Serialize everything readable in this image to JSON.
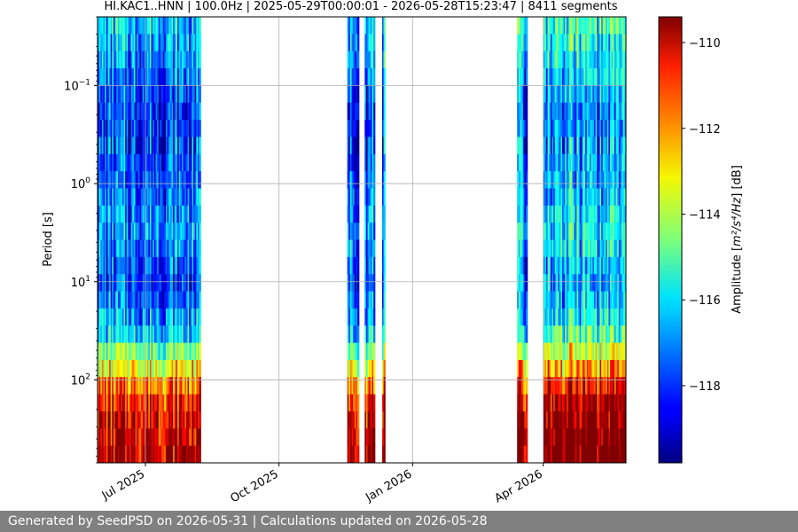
{
  "title": "HI.KAC1..HNN | 100.0Hz | 2025-05-29T00:00:01 - 2026-05-28T15:23:47 | 8411 segments",
  "footer": "Generated by SeedPSD on 2026-05-31 | Calculations updated on 2026-05-28",
  "chart_data": {
    "type": "heatmap",
    "title": "HI.KAC1..HNN | 100.0Hz | 2025-05-29T00:00:01 - 2026-05-28T15:23:47 | 8411 segments",
    "xlabel": "",
    "ylabel": "Period [s]",
    "y_scale": "log",
    "y_inverted": true,
    "xlim": [
      "2025-05-29",
      "2026-05-28"
    ],
    "ylim": [
      0.02,
      700
    ],
    "x_ticks": [
      {
        "date": "2025-07-01",
        "label": "Jul 2025"
      },
      {
        "date": "2025-10-01",
        "label": "Oct 2025"
      },
      {
        "date": "2026-01-01",
        "label": "Jan 2026"
      },
      {
        "date": "2026-04-01",
        "label": "Apr 2026"
      }
    ],
    "y_ticks": [
      {
        "value": 0.1,
        "base": "10",
        "exp": "−1"
      },
      {
        "value": 1,
        "base": "10",
        "exp": "0"
      },
      {
        "value": 10,
        "base": "10",
        "exp": "1"
      },
      {
        "value": 100,
        "base": "10",
        "exp": "2"
      }
    ],
    "grid": true,
    "colormap": "jet",
    "colorbar": {
      "label_prefix": "Amplitude [",
      "label_math": "m²/s⁴/Hz",
      "label_suffix": "] [dB]",
      "range": [
        -119.8,
        -109.4
      ],
      "ticks": [
        {
          "value": -110,
          "label": "−110"
        },
        {
          "value": -112,
          "label": "−112"
        },
        {
          "value": -114,
          "label": "−114"
        },
        {
          "value": -116,
          "label": "−116"
        },
        {
          "value": -118,
          "label": "−118"
        }
      ]
    },
    "data_segments": [
      {
        "start": "2025-05-29",
        "end": "2025-08-08"
      },
      {
        "start": "2025-11-17",
        "end": "2025-11-25"
      },
      {
        "start": "2025-11-29",
        "end": "2025-12-06"
      },
      {
        "start": "2025-12-11",
        "end": "2025-12-13"
      },
      {
        "start": "2026-03-14",
        "end": "2026-03-21"
      },
      {
        "start": "2026-04-01",
        "end": "2026-05-28"
      }
    ],
    "profile": [
      {
        "period": 0.02,
        "db": -116.5
      },
      {
        "period": 0.2,
        "db": -118.5
      },
      {
        "period": 1,
        "db": -118.0
      },
      {
        "period": 3.5,
        "db": -117.2
      },
      {
        "period": 10,
        "db": -118.2
      },
      {
        "period": 30,
        "db": -117.0
      },
      {
        "period": 60,
        "db": -114.5
      },
      {
        "period": 120,
        "db": -112.0
      },
      {
        "period": 200,
        "db": -110.8
      },
      {
        "period": 700,
        "db": -110.0
      }
    ]
  }
}
